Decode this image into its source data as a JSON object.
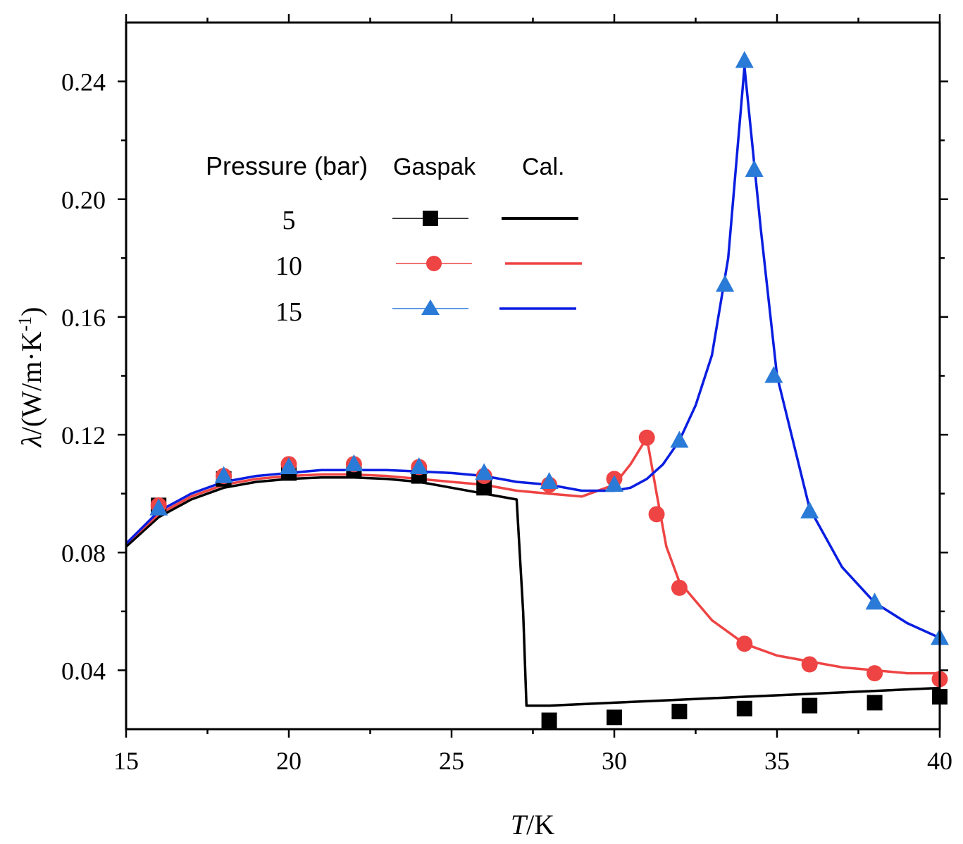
{
  "chart_data": {
    "type": "line",
    "xlabel": {
      "italic": "T",
      "rest": "/K"
    },
    "ylabel": {
      "lambda": "λ",
      "unit": "/(W/m·K",
      "sup": "-1",
      "close": ")"
    },
    "xlim": [
      15,
      40
    ],
    "ylim": [
      0.02,
      0.26
    ],
    "xticks": [
      15,
      20,
      25,
      30,
      35,
      40
    ],
    "yticks": [
      0.04,
      0.08,
      0.12,
      0.16,
      0.2,
      0.24
    ],
    "xtick_labels": [
      "15",
      "20",
      "25",
      "30",
      "35",
      "40"
    ],
    "ytick_labels": [
      "0.04",
      "0.08",
      "0.12",
      "0.16",
      "0.20",
      "0.24"
    ],
    "legend": {
      "position": "top-left",
      "header": {
        "pressure": "Pressure (bar)",
        "gaspak": "Gaspak",
        "cal": "Cal."
      },
      "entries": [
        {
          "label": "5",
          "color": "#000000",
          "marker": "square"
        },
        {
          "label": "10",
          "color": "#ee4444",
          "marker": "circle"
        },
        {
          "label": "15",
          "color": "#2a7ad8",
          "marker": "triangle"
        }
      ]
    },
    "series": [
      {
        "name": "5 bar Gaspak",
        "kind": "markers",
        "marker": "square",
        "color": "#000000",
        "x": [
          16,
          18,
          20,
          22,
          24,
          26,
          28,
          30,
          32,
          34,
          36,
          38,
          40
        ],
        "y": [
          0.096,
          0.105,
          0.107,
          0.108,
          0.106,
          0.102,
          0.023,
          0.024,
          0.026,
          0.027,
          0.028,
          0.029,
          0.031
        ]
      },
      {
        "name": "5 bar Cal.",
        "kind": "line",
        "color": "#000000",
        "line_color": "#000000",
        "x": [
          15,
          16,
          17,
          18,
          19,
          20,
          21,
          22,
          23,
          24,
          25,
          26,
          27,
          27.2,
          27.3,
          28,
          30,
          32,
          34,
          36,
          38,
          40
        ],
        "y": [
          0.082,
          0.092,
          0.098,
          0.102,
          0.104,
          0.105,
          0.1055,
          0.1055,
          0.105,
          0.104,
          0.102,
          0.1,
          0.098,
          0.06,
          0.028,
          0.028,
          0.029,
          0.03,
          0.031,
          0.032,
          0.033,
          0.034
        ]
      },
      {
        "name": "10 bar Gaspak",
        "kind": "markers",
        "marker": "circle",
        "color": "#ee4444",
        "x": [
          16,
          18,
          20,
          22,
          24,
          26,
          28,
          30,
          31,
          31.3,
          32,
          34,
          36,
          38,
          40
        ],
        "y": [
          0.096,
          0.106,
          0.11,
          0.11,
          0.109,
          0.106,
          0.103,
          0.105,
          0.119,
          0.093,
          0.068,
          0.049,
          0.042,
          0.039,
          0.037
        ]
      },
      {
        "name": "10 bar Cal.",
        "kind": "line",
        "color": "#ee4444",
        "line_color": "#ee4444",
        "x": [
          15,
          16,
          17,
          18,
          19,
          20,
          21,
          22,
          23,
          24,
          25,
          26,
          27,
          28,
          29,
          30,
          30.5,
          31,
          31.3,
          31.6,
          32,
          33,
          34,
          35,
          36,
          37,
          38,
          39,
          40
        ],
        "y": [
          0.083,
          0.093,
          0.099,
          0.103,
          0.105,
          0.106,
          0.1065,
          0.1065,
          0.106,
          0.105,
          0.104,
          0.103,
          0.101,
          0.1,
          0.099,
          0.103,
          0.11,
          0.119,
          0.1,
          0.082,
          0.07,
          0.057,
          0.049,
          0.045,
          0.043,
          0.041,
          0.04,
          0.039,
          0.039
        ]
      },
      {
        "name": "15 bar Gaspak",
        "kind": "markers",
        "marker": "triangle",
        "color": "#2a7ad8",
        "x": [
          16,
          18,
          20,
          22,
          24,
          26,
          28,
          30,
          32,
          33.4,
          34,
          34.3,
          34.9,
          36,
          38,
          40
        ],
        "y": [
          0.095,
          0.106,
          0.109,
          0.11,
          0.109,
          0.107,
          0.104,
          0.103,
          0.118,
          0.171,
          0.247,
          0.21,
          0.14,
          0.094,
          0.063,
          0.051
        ]
      },
      {
        "name": "15 bar Cal.",
        "kind": "line",
        "color": "#2a7ad8",
        "line_color": "#0a1ee0",
        "x": [
          15,
          16,
          17,
          18,
          19,
          20,
          21,
          22,
          23,
          24,
          25,
          26,
          27,
          28,
          29,
          30,
          30.5,
          31,
          31.5,
          32,
          32.5,
          33,
          33.5,
          34,
          34.5,
          35,
          36,
          37,
          38,
          39,
          40
        ],
        "y": [
          0.083,
          0.094,
          0.1,
          0.104,
          0.106,
          0.107,
          0.108,
          0.108,
          0.108,
          0.1075,
          0.107,
          0.106,
          0.104,
          0.103,
          0.101,
          0.101,
          0.102,
          0.105,
          0.11,
          0.118,
          0.13,
          0.147,
          0.18,
          0.245,
          0.19,
          0.14,
          0.095,
          0.075,
          0.063,
          0.056,
          0.051
        ]
      }
    ]
  }
}
